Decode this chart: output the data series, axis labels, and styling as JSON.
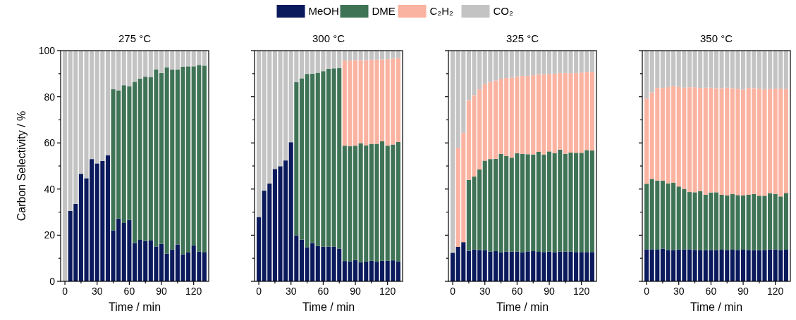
{
  "chart_data": [
    {
      "type": "bar",
      "stacked": true,
      "title": "275 °C",
      "xlabel": "Time / min",
      "ylabel": "Carbon Selectivity / %",
      "legend": "top",
      "grid": false,
      "x": [
        0,
        5,
        10,
        15,
        20,
        25,
        30,
        35,
        40,
        45,
        50,
        55,
        60,
        65,
        70,
        75,
        80,
        85,
        90,
        95,
        100,
        105,
        110,
        115,
        120,
        125,
        130
      ],
      "xlim": [
        -4,
        134
      ],
      "xticks": [
        0,
        {
          "value": 15,
          "label": null
        },
        30,
        {
          "value": 45,
          "label": null
        },
        60,
        {
          "value": 75,
          "label": null
        },
        90,
        {
          "value": 105,
          "label": null
        },
        120
      ],
      "ylim": [
        0,
        100
      ],
      "yticks": [
        0,
        {
          "value": 10,
          "label": null
        },
        20,
        {
          "value": 30,
          "label": null
        },
        40,
        {
          "value": 50,
          "label": null
        },
        60,
        {
          "value": 70,
          "label": null
        },
        80,
        {
          "value": 90,
          "label": null
        },
        100
      ],
      "series": [
        {
          "name": "MeOH",
          "color": "#0b1a5c",
          "values": [
            0,
            30.5,
            33.6,
            46.6,
            44.7,
            53,
            51.1,
            52.2,
            54.7,
            22.1,
            27.2,
            25.3,
            26.6,
            16.6,
            18,
            17.5,
            17.7,
            15.1,
            16.3,
            12,
            13.8,
            16,
            11.7,
            12.6,
            15.5,
            12.9,
            12.5
          ]
        },
        {
          "name": "DME",
          "color": "#3f7356",
          "values": [
            0,
            0,
            0,
            0,
            0,
            0,
            0,
            0,
            0,
            61.2,
            55.6,
            59.7,
            58,
            69.9,
            69.8,
            71.2,
            70.9,
            76.8,
            74,
            80.7,
            78,
            75.8,
            81.3,
            80.6,
            77.7,
            80.9,
            81
          ]
        },
        {
          "name": "C₂H₂",
          "color": "#fbb3a1",
          "values": [
            0,
            0,
            0,
            0,
            0,
            0,
            0,
            0,
            0,
            0,
            0,
            0,
            0,
            0,
            0,
            0,
            0,
            0,
            0,
            0,
            0,
            0,
            0,
            0,
            0,
            0,
            0
          ]
        },
        {
          "name": "CO₂",
          "color": "#c3c3c3",
          "values": [
            100,
            69.5,
            66.4,
            53.4,
            55.3,
            47,
            48.9,
            47.8,
            45.3,
            16.7,
            17.2,
            15,
            15.4,
            13.5,
            12.2,
            11.3,
            11.4,
            8.1,
            9.7,
            7.3,
            8.2,
            8.2,
            7,
            6.8,
            6.8,
            6.2,
            6.5
          ]
        }
      ]
    },
    {
      "type": "bar",
      "stacked": true,
      "title": "300 °C",
      "xlabel": "Time / min",
      "tick_labels": "x",
      "grid": false,
      "x": [
        0,
        5,
        10,
        15,
        20,
        25,
        30,
        35,
        40,
        45,
        50,
        55,
        60,
        65,
        70,
        75,
        80,
        85,
        90,
        95,
        100,
        105,
        110,
        115,
        120,
        125,
        130
      ],
      "xlim": [
        -4,
        134
      ],
      "xticks": [
        0,
        {
          "value": 15,
          "label": null
        },
        30,
        {
          "value": 45,
          "label": null
        },
        60,
        {
          "value": 75,
          "label": null
        },
        90,
        {
          "value": 105,
          "label": null
        },
        120
      ],
      "ylim": [
        0,
        100
      ],
      "yticks": [
        0,
        {
          "value": 10,
          "label": null
        },
        20,
        {
          "value": 30,
          "label": null
        },
        40,
        {
          "value": 50,
          "label": null
        },
        60,
        {
          "value": 70,
          "label": null
        },
        80,
        {
          "value": 90,
          "label": null
        },
        100
      ],
      "series": [
        {
          "color": "#0b1a5c",
          "values": [
            27.9,
            39.3,
            42.4,
            48.7,
            49.9,
            52.4,
            60.3,
            19.9,
            18.1,
            14.8,
            16.6,
            15.3,
            15,
            15.1,
            15,
            14.2,
            8.8,
            8.7,
            9.2,
            8.2,
            8.6,
            8.9,
            8.5,
            8.9,
            8.9,
            9.1,
            8.7
          ]
        },
        {
          "color": "#3f7356",
          "values": [
            0,
            0,
            0,
            0,
            0,
            0,
            0,
            66.5,
            69.9,
            75.1,
            73.4,
            75.1,
            76.1,
            77,
            77.3,
            78.3,
            50,
            49.9,
            49.6,
            51.7,
            50.4,
            50.7,
            51.1,
            51.9,
            49.9,
            50.2,
            51.7
          ]
        },
        {
          "color": "#fbb3a1",
          "values": [
            0,
            0,
            0,
            0,
            0,
            0,
            0,
            0,
            0,
            0,
            0,
            0,
            0,
            0,
            0,
            0,
            36.9,
            37.1,
            37.1,
            36,
            36.9,
            36.5,
            36.5,
            35.4,
            37.5,
            37.2,
            36.3
          ]
        },
        {
          "color": "#c3c3c3",
          "values": [
            72.1,
            60.7,
            57.6,
            51.3,
            50.1,
            47.6,
            39.7,
            13.6,
            12,
            10.1,
            10,
            9.6,
            8.9,
            7.9,
            7.7,
            7.5,
            4.3,
            4.3,
            4.1,
            4.1,
            4.1,
            3.9,
            3.9,
            3.8,
            3.7,
            3.5,
            3.3
          ]
        }
      ]
    },
    {
      "type": "bar",
      "stacked": true,
      "title": "325 °C",
      "xlabel": "Time / min",
      "tick_labels": "x",
      "grid": false,
      "x": [
        0,
        5,
        10,
        15,
        20,
        25,
        30,
        35,
        40,
        45,
        50,
        55,
        60,
        65,
        70,
        75,
        80,
        85,
        90,
        95,
        100,
        105,
        110,
        115,
        120,
        125,
        130
      ],
      "xlim": [
        -4,
        134
      ],
      "xticks": [
        0,
        {
          "value": 15,
          "label": null
        },
        30,
        {
          "value": 45,
          "label": null
        },
        60,
        {
          "value": 75,
          "label": null
        },
        90,
        {
          "value": 105,
          "label": null
        },
        120
      ],
      "ylim": [
        0,
        100
      ],
      "yticks": [
        0,
        {
          "value": 10,
          "label": null
        },
        20,
        {
          "value": 30,
          "label": null
        },
        40,
        {
          "value": 50,
          "label": null
        },
        60,
        {
          "value": 70,
          "label": null
        },
        80,
        {
          "value": 90,
          "label": null
        },
        100
      ],
      "series": [
        {
          "color": "#0b1a5c",
          "values": [
            12.4,
            15,
            17,
            13.2,
            13.8,
            13.6,
            13.5,
            12.9,
            13.1,
            12.6,
            12.9,
            12.9,
            12.9,
            12.6,
            13,
            13.1,
            12.8,
            12.7,
            12.9,
            12.6,
            12.9,
            12.9,
            12.9,
            12.7,
            12.7,
            12.7,
            12.7
          ]
        },
        {
          "color": "#3f7356",
          "values": [
            0,
            0,
            0,
            30.8,
            31.6,
            34.9,
            38.8,
            40.1,
            40,
            42.6,
            41.4,
            40.7,
            42.6,
            42.6,
            42.1,
            41.9,
            43.3,
            42.3,
            43.4,
            43,
            44.2,
            42.4,
            42.9,
            43,
            43,
            44.2,
            44
          ]
        },
        {
          "color": "#fbb3a1",
          "values": [
            0,
            42.9,
            47.4,
            34.5,
            35.3,
            34.7,
            33.2,
            33.4,
            33.9,
            32.6,
            33.8,
            34.7,
            33.3,
            33.8,
            33.9,
            34.3,
            33.6,
            34.8,
            33.6,
            34.4,
            33.2,
            35,
            34.4,
            34.6,
            34.8,
            33.9,
            34.1
          ]
        },
        {
          "color": "#c3c3c3",
          "values": [
            87.6,
            42.1,
            35.6,
            21.5,
            19.3,
            16.8,
            14.5,
            13.6,
            13,
            12.2,
            11.9,
            11.7,
            11.2,
            11,
            11,
            10.7,
            10.3,
            10.2,
            10.1,
            10,
            9.7,
            9.7,
            9.8,
            9.7,
            9.5,
            9.2,
            9.2
          ]
        }
      ]
    },
    {
      "type": "bar",
      "stacked": true,
      "title": "350 °C",
      "xlabel": "Time / min",
      "tick_labels": "x",
      "grid": false,
      "x": [
        0,
        5,
        10,
        15,
        20,
        25,
        30,
        35,
        40,
        45,
        50,
        55,
        60,
        65,
        70,
        75,
        80,
        85,
        90,
        95,
        100,
        105,
        110,
        115,
        120,
        125,
        130
      ],
      "xlim": [
        -4,
        134
      ],
      "xticks": [
        0,
        {
          "value": 15,
          "label": null
        },
        30,
        {
          "value": 45,
          "label": null
        },
        60,
        {
          "value": 75,
          "label": null
        },
        90,
        {
          "value": 105,
          "label": null
        },
        120
      ],
      "ylim": [
        0,
        100
      ],
      "yticks": [
        0,
        {
          "value": 10,
          "label": null
        },
        20,
        {
          "value": 30,
          "label": null
        },
        40,
        {
          "value": 50,
          "label": null
        },
        60,
        {
          "value": 70,
          "label": null
        },
        80,
        {
          "value": 90,
          "label": null
        },
        100
      ],
      "series": [
        {
          "color": "#0b1a5c",
          "values": [
            13.9,
            13.9,
            13.7,
            14.2,
            13.6,
            13.6,
            13.8,
            13.8,
            13.9,
            13.6,
            13.6,
            13.5,
            13.6,
            13.6,
            13.7,
            13.6,
            13.7,
            13.6,
            13.7,
            13.6,
            13.5,
            13.5,
            13.6,
            13.8,
            13.8,
            13.6,
            13.7
          ]
        },
        {
          "color": "#3f7356",
          "values": [
            28.4,
            30.5,
            30,
            29.5,
            28.9,
            29.2,
            27.3,
            26.3,
            24.8,
            25,
            25.5,
            24,
            24.9,
            25,
            23.8,
            23.6,
            24.1,
            23.8,
            23.5,
            23.9,
            24.4,
            23.6,
            23.5,
            24.4,
            24,
            23.2,
            24.6
          ]
        },
        {
          "color": "#fbb3a1",
          "values": [
            36.9,
            37.5,
            40.1,
            40.1,
            41.7,
            42,
            43.2,
            43.8,
            45.4,
            45.5,
            44.7,
            46.4,
            45.4,
            45.1,
            46.2,
            46.7,
            45.9,
            46.1,
            45.9,
            46.3,
            45.8,
            46.4,
            46.1,
            45.2,
            45.7,
            46.7,
            45.1
          ]
        },
        {
          "color": "#c3c3c3",
          "values": [
            20.8,
            18.1,
            16.2,
            16.2,
            15.8,
            15.2,
            15.7,
            16.1,
            15.9,
            15.9,
            16.2,
            16.1,
            16.1,
            16.3,
            16.3,
            16.1,
            16.3,
            16.5,
            16.9,
            16.2,
            16.3,
            16.5,
            16.8,
            16.6,
            16.5,
            16.5,
            16.6
          ]
        }
      ]
    }
  ]
}
